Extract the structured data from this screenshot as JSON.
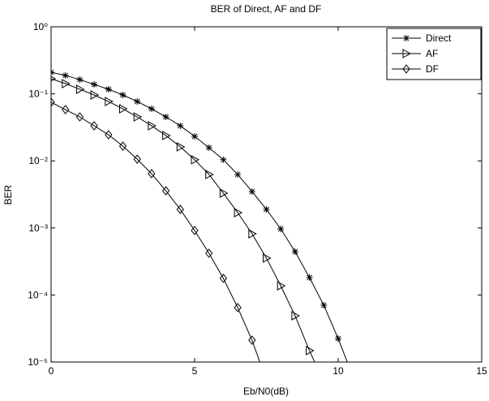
{
  "chart_data": {
    "type": "line",
    "title": "BER of Direct, AF and DF",
    "x_label": "Eb/N0(dB)",
    "y_label": "BER",
    "log_y": true,
    "legend": "upper right",
    "x": [
      0,
      0.5,
      1,
      1.5,
      2,
      2.5,
      3,
      3.5,
      4,
      4.5,
      5,
      5.5,
      6,
      6.5,
      7,
      7.5,
      8,
      8.5,
      9,
      9.5,
      10,
      10.5
    ],
    "series": [
      {
        "name": "Direct",
        "color": "#000000",
        "marker": "star",
        "values": [
          0.21,
          0.188,
          0.163,
          0.138,
          0.117,
          0.0962,
          0.0769,
          0.0598,
          0.0453,
          0.0334,
          0.0232,
          0.0157,
          0.0104,
          0.00627,
          0.00349,
          0.00189,
          0.000967,
          0.000443,
          0.000182,
          7.03e-05,
          2.24e-05,
          6.3e-06
        ]
      },
      {
        "name": "AF",
        "color": "#000000",
        "marker": "triangle-right",
        "values": [
          0.168,
          0.142,
          0.117,
          0.0962,
          0.0769,
          0.0598,
          0.0453,
          0.0334,
          0.0239,
          0.0162,
          0.0104,
          0.00627,
          0.0033,
          0.00169,
          0.000818,
          0.000355,
          0.000137,
          4.9e-05,
          1.48e-05,
          5e-06,
          null,
          null
        ]
      },
      {
        "name": "DF",
        "color": "#000000",
        "marker": "diamond",
        "values": [
          0.0748,
          0.0582,
          0.0453,
          0.0334,
          0.0245,
          0.0166,
          0.0106,
          0.00644,
          0.00358,
          0.00189,
          0.000915,
          0.000419,
          0.000177,
          6.48e-05,
          2.12e-05,
          5.3e-06,
          null,
          null,
          null,
          null,
          null,
          null
        ]
      }
    ],
    "xlim": [
      0,
      15
    ],
    "xticks": [
      0,
      5,
      10,
      15
    ],
    "ylim": [
      1e-05,
      1
    ],
    "yticks": [
      {
        "value": 1e-05,
        "label": "10⁻⁵"
      },
      {
        "value": 0.0001,
        "label": "10⁻⁴"
      },
      {
        "value": 0.001,
        "label": "10⁻³"
      },
      {
        "value": 0.01,
        "label": "10⁻²"
      },
      {
        "value": 0.1,
        "label": "10⁻¹"
      },
      {
        "value": 1,
        "label": "10⁰"
      }
    ]
  }
}
